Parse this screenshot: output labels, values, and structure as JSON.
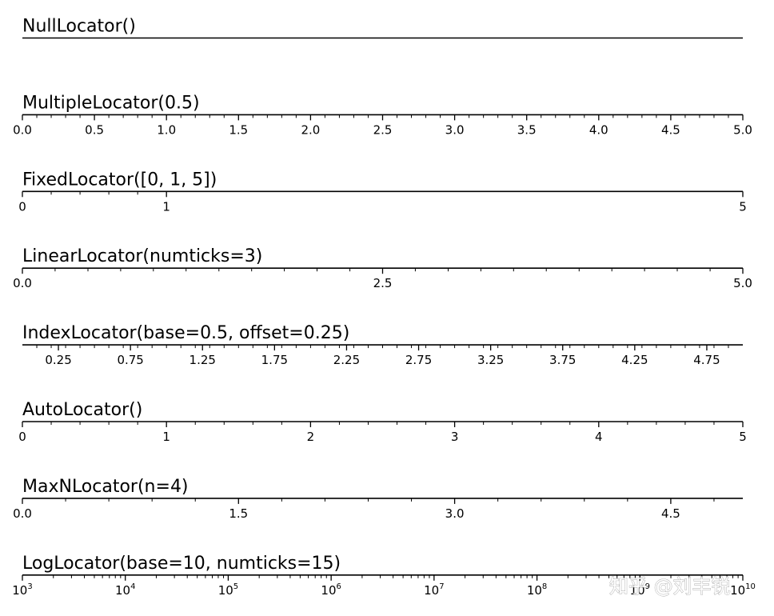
{
  "watermark": "知乎 @刘丰锐",
  "chart_data": [
    {
      "type": "axis",
      "title": "NullLocator()",
      "xlim": [
        0,
        5
      ],
      "scale": "linear",
      "major_ticks": [],
      "major_labels": [],
      "minor_ticks": []
    },
    {
      "type": "axis",
      "title": "MultipleLocator(0.5)",
      "xlim": [
        0,
        5
      ],
      "scale": "linear",
      "major_ticks": [
        0,
        0.5,
        1,
        1.5,
        2,
        2.5,
        3,
        3.5,
        4,
        4.5,
        5
      ],
      "major_labels": [
        "0.0",
        "0.5",
        "1.0",
        "1.5",
        "2.0",
        "2.5",
        "3.0",
        "3.5",
        "4.0",
        "4.5",
        "5.0"
      ],
      "minor_ticks": [
        0.1,
        0.2,
        0.3,
        0.4,
        0.6,
        0.7,
        0.8,
        0.9,
        1.1,
        1.2,
        1.3,
        1.4,
        1.6,
        1.7,
        1.8,
        1.9,
        2.1,
        2.2,
        2.3,
        2.4,
        2.6,
        2.7,
        2.8,
        2.9,
        3.1,
        3.2,
        3.3,
        3.4,
        3.6,
        3.7,
        3.8,
        3.9,
        4.1,
        4.2,
        4.3,
        4.4,
        4.6,
        4.7,
        4.8,
        4.9
      ]
    },
    {
      "type": "axis",
      "title": "FixedLocator([0, 1, 5])",
      "xlim": [
        0,
        5
      ],
      "scale": "linear",
      "major_ticks": [
        0,
        1,
        5
      ],
      "major_labels": [
        "0",
        "1",
        "5"
      ],
      "minor_ticks": [
        0.2,
        0.4,
        0.6,
        0.8
      ]
    },
    {
      "type": "axis",
      "title": "LinearLocator(numticks=3)",
      "xlim": [
        0,
        5
      ],
      "scale": "linear",
      "major_ticks": [
        0,
        2.5,
        5
      ],
      "major_labels": [
        "0.0",
        "2.5",
        "5.0"
      ],
      "minor_ticks": [
        0.227,
        0.455,
        0.682,
        0.909,
        1.136,
        1.364,
        1.591,
        1.818,
        2.045,
        2.273,
        2.727,
        2.955,
        3.182,
        3.409,
        3.636,
        3.864,
        4.091,
        4.318,
        4.545,
        4.773
      ]
    },
    {
      "type": "axis",
      "title": "IndexLocator(base=0.5, offset=0.25)",
      "xlim": [
        0,
        5
      ],
      "scale": "linear",
      "major_ticks": [
        0.25,
        0.75,
        1.25,
        1.75,
        2.25,
        2.75,
        3.25,
        3.75,
        4.25,
        4.75
      ],
      "major_labels": [
        "0.25",
        "0.75",
        "1.25",
        "1.75",
        "2.25",
        "2.75",
        "3.25",
        "3.75",
        "4.25",
        "4.75"
      ],
      "minor_ticks": [
        0.1,
        0.2,
        0.3,
        0.4,
        0.5,
        0.6,
        0.7,
        0.8,
        0.9,
        1.0,
        1.1,
        1.2,
        1.3,
        1.4,
        1.5,
        1.6,
        1.7,
        1.8,
        1.9,
        2.0,
        2.1,
        2.2,
        2.3,
        2.4,
        2.5,
        2.6,
        2.7,
        2.8,
        2.9,
        3.0,
        3.1,
        3.2,
        3.3,
        3.4,
        3.5,
        3.6,
        3.7,
        3.8,
        3.9,
        4.0,
        4.1,
        4.2,
        4.3,
        4.4,
        4.5,
        4.6,
        4.7,
        4.8,
        4.9
      ]
    },
    {
      "type": "axis",
      "title": "AutoLocator()",
      "xlim": [
        0,
        5
      ],
      "scale": "linear",
      "major_ticks": [
        0,
        1,
        2,
        3,
        4,
        5
      ],
      "major_labels": [
        "0",
        "1",
        "2",
        "3",
        "4",
        "5"
      ],
      "minor_ticks": [
        0.2,
        0.4,
        0.6,
        0.8,
        1.2,
        1.4,
        1.6,
        1.8,
        2.2,
        2.4,
        2.6,
        2.8,
        3.2,
        3.4,
        3.6,
        3.8,
        4.2,
        4.4,
        4.6,
        4.8
      ]
    },
    {
      "type": "axis",
      "title": "MaxNLocator(n=4)",
      "xlim": [
        0,
        5
      ],
      "scale": "linear",
      "major_ticks": [
        0,
        1.5,
        3,
        4.5
      ],
      "major_labels": [
        "0.0",
        "1.5",
        "3.0",
        "4.5"
      ],
      "minor_ticks": [
        0.3,
        0.6,
        0.9,
        1.2,
        1.8,
        2.1,
        2.4,
        2.7,
        3.3,
        3.6,
        3.9,
        4.2,
        4.8
      ]
    },
    {
      "type": "axis",
      "title": "LogLocator(base=10, numticks=15)",
      "xlim": [
        1000,
        10000000000
      ],
      "scale": "log",
      "major_ticks": [
        1000,
        10000,
        100000,
        1000000,
        10000000,
        100000000,
        1000000000,
        10000000000
      ],
      "major_labels": [
        {
          "base": "10",
          "exp": "3"
        },
        {
          "base": "10",
          "exp": "4"
        },
        {
          "base": "10",
          "exp": "5"
        },
        {
          "base": "10",
          "exp": "6"
        },
        {
          "base": "10",
          "exp": "7"
        },
        {
          "base": "10",
          "exp": "8"
        },
        {
          "base": "10",
          "exp": "9"
        },
        {
          "base": "10",
          "exp": "10"
        }
      ],
      "minor_ticks": "2-9 per decade"
    }
  ]
}
